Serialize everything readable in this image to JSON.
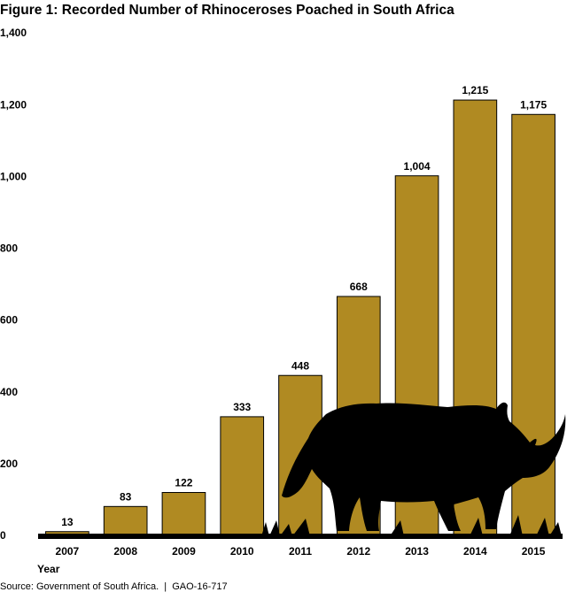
{
  "chart_data": {
    "type": "bar",
    "title": "Figure 1: Recorded Number of Rhinoceroses Poached in South Africa",
    "categories": [
      "2007",
      "2008",
      "2009",
      "2010",
      "2011",
      "2012",
      "2013",
      "2014",
      "2015"
    ],
    "values": [
      13,
      83,
      122,
      333,
      448,
      668,
      1004,
      1215,
      1175
    ],
    "value_labels": [
      "13",
      "83",
      "122",
      "333",
      "448",
      "668",
      "1,004",
      "1,215",
      "1,175"
    ],
    "color": "#b08a22",
    "x_label": "Year",
    "ylim": [
      0,
      1400
    ],
    "yticks": [
      0,
      200,
      400,
      600,
      800,
      {
        "value": 1000,
        "label": "1,000"
      },
      {
        "value": 1200,
        "label": "1,200"
      },
      {
        "value": 1400,
        "label": "1,400"
      }
    ],
    "source": "Source: Government of South Africa.  |  GAO-16-717"
  }
}
